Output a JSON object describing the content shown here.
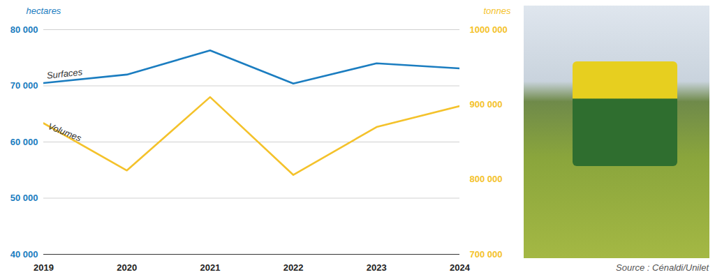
{
  "chart_data": {
    "type": "line",
    "source": "Source : Cénaldi/Unilet",
    "y_label": "hectares",
    "y2_label": "tonnes",
    "x": [
      2019,
      2020,
      2021,
      2022,
      2023,
      2024
    ],
    "xlim": [
      2019,
      2024
    ],
    "xticks": [
      2019,
      2020,
      2021,
      2022,
      2023,
      2024
    ],
    "ylim": [
      40000,
      80000
    ],
    "yticks": [
      {
        "value": 40000,
        "label": "40 000"
      },
      {
        "value": 50000,
        "label": "50 000"
      },
      {
        "value": 60000,
        "label": "60 000"
      },
      {
        "value": 70000,
        "label": "70 000"
      },
      {
        "value": 80000,
        "label": "80 000"
      }
    ],
    "y2lim": [
      700000,
      1000000
    ],
    "y2ticks": [
      {
        "value": 700000,
        "label": "700 000"
      },
      {
        "value": 800000,
        "label": "800 000"
      },
      {
        "value": 900000,
        "label": "900 000"
      },
      {
        "value": 1000000,
        "label": "1000 000"
      }
    ],
    "grid": true,
    "series": [
      {
        "name": "Surfaces",
        "color": "#1b7dc0",
        "values": [
          70500,
          72000,
          76300,
          70400,
          74000,
          73100
        ]
      },
      {
        "name": "Volumes",
        "color": "#f4c22b",
        "axis": "y2",
        "values": [
          875000,
          812000,
          910000,
          806000,
          870000,
          898000
        ]
      }
    ]
  }
}
